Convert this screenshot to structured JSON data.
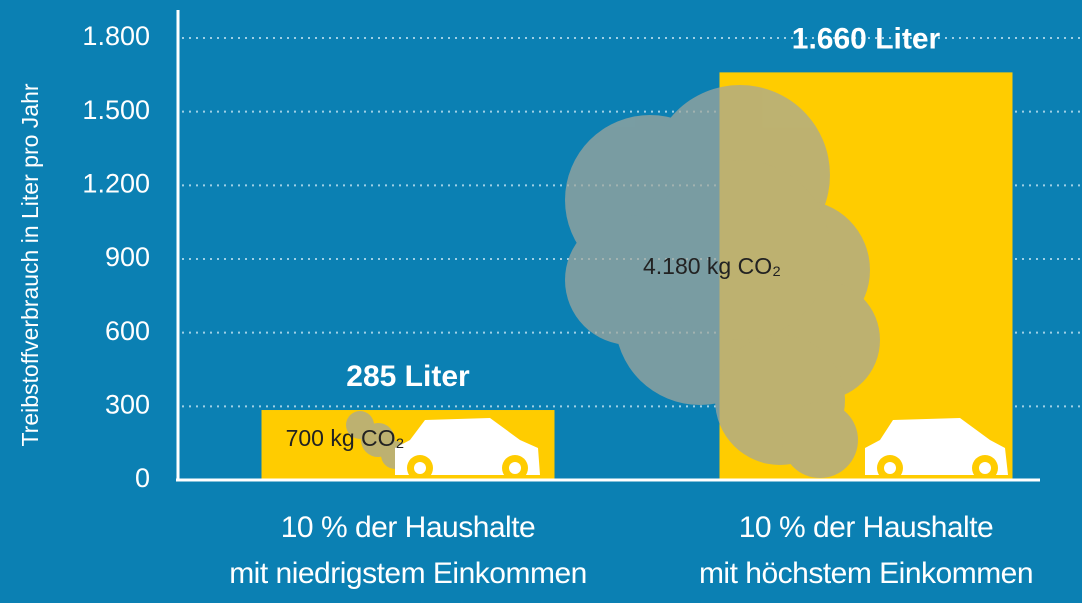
{
  "chart_data": {
    "type": "bar",
    "y_label": "Treibstoffverbrauch in Liter pro Jahr",
    "categories": [
      "10 % der Haushalte\nmit niedrigstem Einkommen",
      "10 % der Haushalte\nmit höchstem Einkommen"
    ],
    "values": [
      285,
      1660
    ],
    "value_labels": [
      "285 Liter",
      "1.660 Liter"
    ],
    "annotations": [
      "700 kg CO₂",
      "4.180 kg CO₂"
    ],
    "color": "#ffcc00",
    "ylim": [
      0,
      1800
    ],
    "yticks": [
      0,
      300,
      600,
      900,
      {
        "value": 1200,
        "label": "1.200"
      },
      {
        "value": 1500,
        "label": "1.500"
      },
      {
        "value": 1800,
        "label": "1.800"
      }
    ],
    "grid": true
  }
}
